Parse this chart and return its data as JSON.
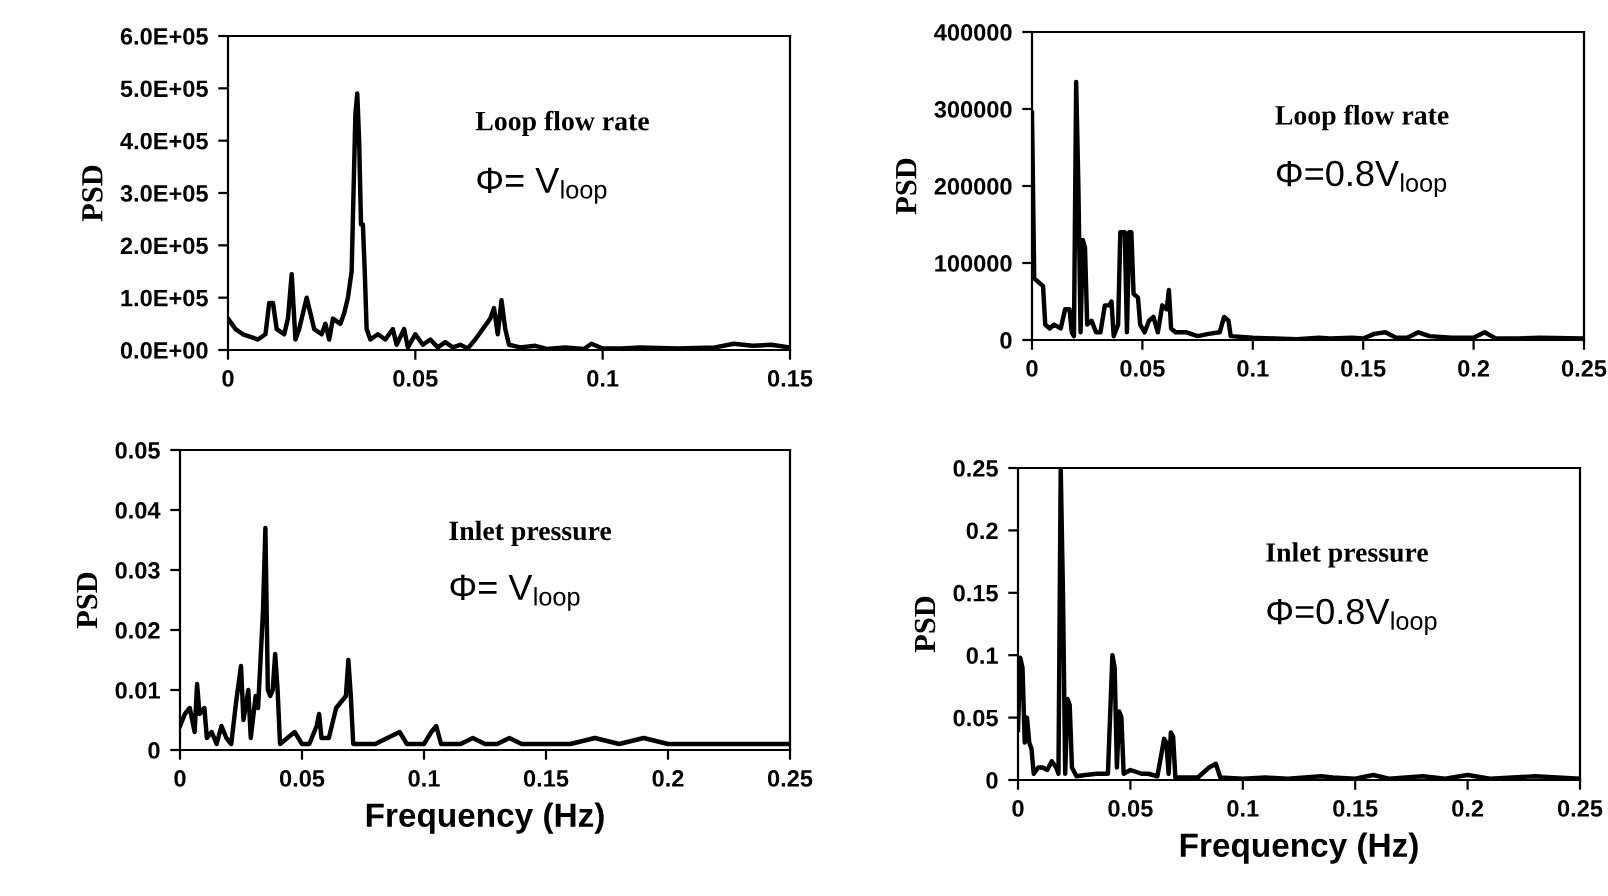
{
  "chart_data": [
    {
      "type": "line",
      "ylabel": "PSD",
      "annotations": [
        "Loop flow rate",
        "Φ= V$_{loop}$"
      ],
      "xlim": [
        0,
        0.15
      ],
      "xticks": [
        0,
        0.05,
        0.1,
        0.15
      ],
      "ylim": [
        0,
        600000
      ],
      "yticks": [
        {
          "value": 0,
          "label": "0.0E+00"
        },
        {
          "value": 100000,
          "label": "1.0E+05"
        },
        {
          "value": 200000,
          "label": "2.0E+05"
        },
        {
          "value": 300000,
          "label": "3.0E+05"
        },
        {
          "value": 400000,
          "label": "4.0E+05"
        },
        {
          "value": 500000,
          "label": "5.0E+05"
        },
        {
          "value": 600000,
          "label": "6.0E+05"
        }
      ],
      "grid": false,
      "series": [
        {
          "color": "#000000",
          "x": [
            0,
            0.002,
            0.004,
            0.006,
            0.008,
            0.01,
            0.011,
            0.012,
            0.013,
            0.015,
            0.016,
            0.017,
            0.018,
            0.019,
            0.021,
            0.022,
            0.023,
            0.025,
            0.026,
            0.027,
            0.028,
            0.03,
            0.031,
            0.032,
            0.033,
            0.034,
            0.0345,
            0.035,
            0.0355,
            0.036,
            0.0365,
            0.037,
            0.038,
            0.04,
            0.042,
            0.044,
            0.045,
            0.047,
            0.048,
            0.05,
            0.052,
            0.054,
            0.056,
            0.058,
            0.06,
            0.062,
            0.064,
            0.066,
            0.068,
            0.07,
            0.071,
            0.072,
            0.073,
            0.074,
            0.075,
            0.078,
            0.082,
            0.085,
            0.09,
            0.095,
            0.097,
            0.1,
            0.105,
            0.11,
            0.12,
            0.13,
            0.135,
            0.14,
            0.145,
            0.15
          ],
          "values": [
            60000,
            40000,
            30000,
            25000,
            20000,
            30000,
            90000,
            90000,
            40000,
            30000,
            60000,
            145000,
            20000,
            40000,
            100000,
            70000,
            40000,
            30000,
            50000,
            20000,
            60000,
            50000,
            70000,
            100000,
            150000,
            450000,
            490000,
            400000,
            240000,
            240000,
            150000,
            40000,
            20000,
            30000,
            20000,
            40000,
            10000,
            40000,
            5000,
            30000,
            10000,
            20000,
            5000,
            15000,
            5000,
            10000,
            3000,
            20000,
            40000,
            60000,
            80000,
            30000,
            95000,
            40000,
            10000,
            5000,
            8000,
            2000,
            5000,
            2000,
            12000,
            3000,
            3000,
            5000,
            3000,
            5000,
            12000,
            8000,
            10000,
            5000
          ]
        }
      ]
    },
    {
      "type": "line",
      "ylabel": "PSD",
      "annotations": [
        "Loop flow rate",
        "Φ=0.8V$_{loop}$"
      ],
      "xlim": [
        0,
        0.25
      ],
      "xticks": [
        0,
        0.05,
        0.1,
        0.15,
        0.2,
        0.25
      ],
      "ylim": [
        0,
        400000
      ],
      "yticks": [
        0,
        100000,
        200000,
        300000,
        400000
      ],
      "grid": false,
      "series": [
        {
          "color": "#000000",
          "x": [
            0,
            0.001,
            0.003,
            0.005,
            0.006,
            0.008,
            0.01,
            0.013,
            0.015,
            0.017,
            0.018,
            0.019,
            0.02,
            0.021,
            0.022,
            0.023,
            0.024,
            0.025,
            0.027,
            0.029,
            0.031,
            0.033,
            0.035,
            0.036,
            0.037,
            0.039,
            0.04,
            0.042,
            0.043,
            0.044,
            0.045,
            0.046,
            0.048,
            0.049,
            0.051,
            0.053,
            0.055,
            0.057,
            0.059,
            0.061,
            0.062,
            0.063,
            0.065,
            0.07,
            0.075,
            0.08,
            0.085,
            0.087,
            0.089,
            0.09,
            0.1,
            0.11,
            0.12,
            0.13,
            0.135,
            0.145,
            0.15,
            0.155,
            0.16,
            0.165,
            0.17,
            0.175,
            0.18,
            0.19,
            0.2,
            0.205,
            0.21,
            0.22,
            0.23,
            0.25
          ],
          "values": [
            295000,
            80000,
            75000,
            70000,
            20000,
            15000,
            20000,
            15000,
            40000,
            40000,
            10000,
            5000,
            335000,
            200000,
            10000,
            130000,
            120000,
            20000,
            25000,
            10000,
            10000,
            45000,
            45000,
            50000,
            5000,
            20000,
            140000,
            140000,
            10000,
            140000,
            140000,
            60000,
            55000,
            20000,
            10000,
            25000,
            30000,
            10000,
            45000,
            40000,
            65000,
            15000,
            10000,
            10000,
            5000,
            8000,
            10000,
            30000,
            25000,
            5000,
            3000,
            2000,
            1000,
            3000,
            2000,
            3000,
            2000,
            8000,
            10000,
            3000,
            3000,
            10000,
            5000,
            3000,
            3000,
            10000,
            2000,
            2000,
            3000,
            2000
          ]
        }
      ]
    },
    {
      "type": "line",
      "ylabel": "PSD",
      "xlabel": "Frequency (Hz)",
      "annotations": [
        "Inlet pressure",
        "Φ= V$_{loop}$"
      ],
      "xlim": [
        0,
        0.25
      ],
      "xticks": [
        0,
        0.05,
        0.1,
        0.15,
        0.2,
        0.25
      ],
      "ylim": [
        0,
        0.05
      ],
      "yticks": [
        0,
        0.01,
        0.02,
        0.03,
        0.04,
        0.05
      ],
      "grid": false,
      "series": [
        {
          "color": "#000000",
          "x": [
            0,
            0.002,
            0.004,
            0.006,
            0.007,
            0.008,
            0.01,
            0.011,
            0.013,
            0.015,
            0.017,
            0.019,
            0.021,
            0.023,
            0.025,
            0.026,
            0.028,
            0.029,
            0.031,
            0.032,
            0.034,
            0.035,
            0.036,
            0.037,
            0.038,
            0.039,
            0.04,
            0.041,
            0.044,
            0.047,
            0.05,
            0.053,
            0.056,
            0.057,
            0.058,
            0.061,
            0.064,
            0.066,
            0.068,
            0.069,
            0.07,
            0.071,
            0.075,
            0.08,
            0.085,
            0.09,
            0.093,
            0.1,
            0.103,
            0.105,
            0.107,
            0.115,
            0.12,
            0.125,
            0.13,
            0.135,
            0.14,
            0.15,
            0.16,
            0.17,
            0.18,
            0.19,
            0.2,
            0.21,
            0.22,
            0.25
          ],
          "values": [
            0.004,
            0.006,
            0.007,
            0.003,
            0.011,
            0.006,
            0.007,
            0.002,
            0.003,
            0.001,
            0.004,
            0.002,
            0.001,
            0.008,
            0.014,
            0.005,
            0.01,
            0.002,
            0.009,
            0.007,
            0.023,
            0.037,
            0.01,
            0.009,
            0.01,
            0.016,
            0.01,
            0.001,
            0.002,
            0.003,
            0.001,
            0.001,
            0.004,
            0.006,
            0.002,
            0.002,
            0.007,
            0.008,
            0.009,
            0.015,
            0.009,
            0.001,
            0.001,
            0.001,
            0.002,
            0.003,
            0.001,
            0.001,
            0.003,
            0.004,
            0.001,
            0.001,
            0.002,
            0.001,
            0.001,
            0.002,
            0.001,
            0.001,
            0.001,
            0.002,
            0.001,
            0.002,
            0.001,
            0.001,
            0.001,
            0.001
          ]
        }
      ]
    },
    {
      "type": "line",
      "ylabel": "PSD",
      "xlabel": "Frequency (Hz)",
      "annotations": [
        "Inlet pressure",
        "Φ=0.8V$_{loop}$"
      ],
      "xlim": [
        0,
        0.25
      ],
      "xticks": [
        0,
        0.05,
        0.1,
        0.15,
        0.2,
        0.25
      ],
      "ylim": [
        0,
        0.25
      ],
      "yticks": [
        0,
        0.05,
        0.1,
        0.15,
        0.2,
        0.25
      ],
      "grid": false,
      "series": [
        {
          "color": "#000000",
          "x": [
            0,
            0.001,
            0.002,
            0.003,
            0.004,
            0.005,
            0.006,
            0.007,
            0.009,
            0.011,
            0.013,
            0.015,
            0.017,
            0.018,
            0.019,
            0.02,
            0.021,
            0.022,
            0.023,
            0.024,
            0.026,
            0.03,
            0.035,
            0.04,
            0.042,
            0.043,
            0.044,
            0.045,
            0.046,
            0.047,
            0.05,
            0.055,
            0.058,
            0.062,
            0.065,
            0.066,
            0.067,
            0.068,
            0.069,
            0.07,
            0.075,
            0.08,
            0.085,
            0.088,
            0.09,
            0.1,
            0.11,
            0.12,
            0.135,
            0.14,
            0.15,
            0.158,
            0.165,
            0.18,
            0.19,
            0.2,
            0.21,
            0.23,
            0.25
          ],
          "values": [
            0.04,
            0.098,
            0.09,
            0.03,
            0.05,
            0.03,
            0.025,
            0.005,
            0.01,
            0.01,
            0.008,
            0.015,
            0.01,
            0.005,
            0.25,
            0.15,
            0.005,
            0.065,
            0.06,
            0.01,
            0.003,
            0.004,
            0.005,
            0.005,
            0.1,
            0.09,
            0.01,
            0.055,
            0.05,
            0.005,
            0.008,
            0.005,
            0.005,
            0.003,
            0.033,
            0.03,
            0.005,
            0.038,
            0.035,
            0.002,
            0.002,
            0.002,
            0.01,
            0.013,
            0.002,
            0.001,
            0.002,
            0.001,
            0.003,
            0.002,
            0.001,
            0.004,
            0.001,
            0.003,
            0.001,
            0.004,
            0.001,
            0.003,
            0.001
          ]
        }
      ]
    }
  ]
}
